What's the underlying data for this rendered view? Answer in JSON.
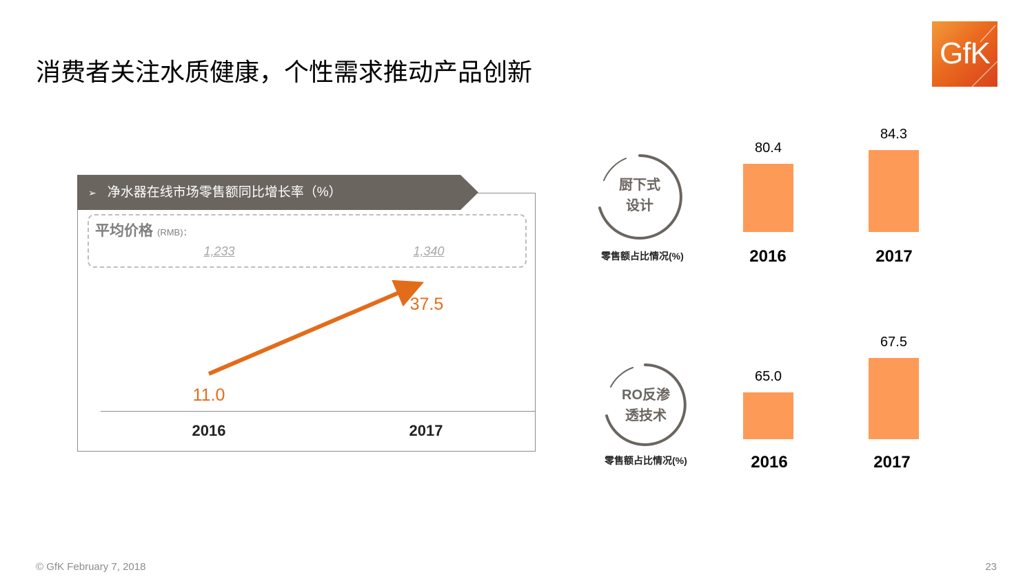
{
  "slide": {
    "title": "消费者关注水质健康，个性需求推动产品创新",
    "logo_text": "GfK",
    "footer": "© GfK February 7, 2018",
    "page_number": "23"
  },
  "colors": {
    "accent_orange": "#e36c1a",
    "bar_orange": "#fe9a57",
    "banner_gray": "#6b6560"
  },
  "chart_data": [
    {
      "type": "line",
      "title": "净水器在线市场零售额同比增长率（%）",
      "categories": [
        "2016",
        "2017"
      ],
      "series": [
        {
          "values": [
            11.0,
            37.5
          ]
        }
      ],
      "value_labels": [
        "11.0",
        "37.5"
      ],
      "annotation": {
        "label": "平均价格",
        "unit": "(RMB)：",
        "values": [
          "1,233",
          "1,340"
        ]
      },
      "grid": false
    },
    {
      "type": "bar",
      "title": "厨下式设计",
      "title_lines": [
        "厨下式",
        "设计"
      ],
      "ylabel": "零售额占比情况(%)",
      "categories": [
        "2016",
        "2017"
      ],
      "values": [
        80.4,
        84.3
      ],
      "value_labels": [
        "80.4",
        "84.3"
      ],
      "grid": false
    },
    {
      "type": "bar",
      "title": "RO反渗透技术",
      "title_lines": [
        "RO反渗",
        "透技术"
      ],
      "ylabel": "零售额占比情况(%)",
      "categories": [
        "2016",
        "2017"
      ],
      "values": [
        65.0,
        67.5
      ],
      "value_labels": [
        "65.0",
        "67.5"
      ],
      "grid": false
    }
  ]
}
